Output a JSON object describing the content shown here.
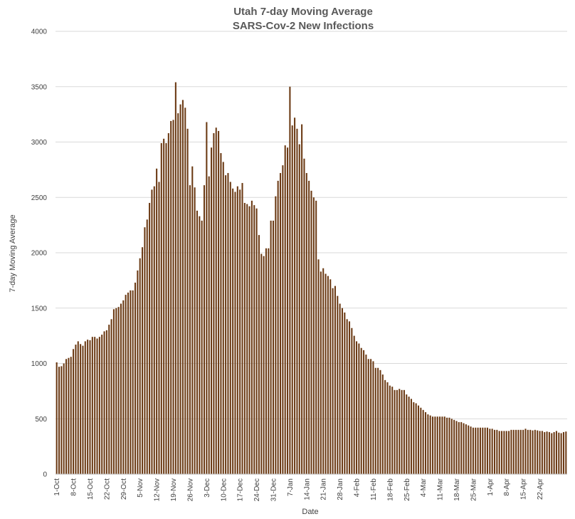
{
  "chart_data": {
    "type": "bar",
    "title": "Utah 7-day Moving Average",
    "subtitle": "SARS-Cov-2 New Infections",
    "xlabel": "Date",
    "ylabel": "7-day Moving Average",
    "ylim": [
      0,
      4000
    ],
    "y_ticks": [
      "0",
      "500",
      "1000",
      "1500",
      "2000",
      "2500",
      "3000",
      "3500",
      "4000"
    ],
    "x_tick_labels": [
      "1-Oct",
      "8-Oct",
      "15-Oct",
      "22-Oct",
      "29-Oct",
      "5-Nov",
      "12-Nov",
      "19-Nov",
      "26-Nov",
      "3-Dec",
      "10-Dec",
      "17-Dec",
      "24-Dec",
      "31-Dec",
      "7-Jan",
      "14-Jan",
      "21-Jan",
      "28-Jan",
      "4-Feb",
      "11-Feb",
      "18-Feb",
      "25-Feb",
      "4-Mar",
      "11-Mar",
      "18-Mar",
      "25-Mar",
      "1-Apr",
      "8-Apr",
      "15-Apr",
      "22-Apr"
    ],
    "grid": "horizontal",
    "bar_color": "#6b3a14",
    "series": [
      {
        "values": [
          1010,
          970,
          975,
          1000,
          1040,
          1050,
          1060,
          1130,
          1170,
          1200,
          1175,
          1160,
          1200,
          1215,
          1210,
          1240,
          1240,
          1225,
          1240,
          1260,
          1290,
          1300,
          1350,
          1400,
          1490,
          1500,
          1510,
          1540,
          1570,
          1620,
          1640,
          1660,
          1660,
          1730,
          1840,
          1950,
          2050,
          2230,
          2300,
          2450,
          2570,
          2600,
          2760,
          2640,
          2990,
          3030,
          2990,
          3080,
          3190,
          3200,
          3540,
          3260,
          3340,
          3380,
          3310,
          3120,
          2610,
          2780,
          2590,
          2380,
          2330,
          2290,
          2610,
          3180,
          2690,
          2950,
          3080,
          3130,
          3100,
          2900,
          2820,
          2700,
          2720,
          2640,
          2580,
          2550,
          2600,
          2570,
          2630,
          2450,
          2440,
          2420,
          2470,
          2430,
          2400,
          2160,
          1990,
          1970,
          2040,
          2040,
          2290,
          2290,
          2510,
          2650,
          2720,
          2790,
          2970,
          2950,
          3500,
          3150,
          3220,
          3120,
          2980,
          3160,
          2850,
          2720,
          2650,
          2560,
          2500,
          2470,
          1940,
          1830,
          1860,
          1810,
          1790,
          1760,
          1680,
          1700,
          1610,
          1540,
          1500,
          1460,
          1400,
          1380,
          1320,
          1250,
          1200,
          1180,
          1140,
          1120,
          1080,
          1040,
          1040,
          1020,
          960,
          960,
          940,
          900,
          850,
          830,
          800,
          790,
          760,
          760,
          770,
          760,
          760,
          720,
          700,
          680,
          650,
          640,
          620,
          600,
          580,
          560,
          540,
          530,
          520,
          520,
          520,
          520,
          520,
          520,
          510,
          510,
          500,
          490,
          480,
          470,
          470,
          460,
          450,
          440,
          430,
          420,
          420,
          420,
          420,
          420,
          420,
          420,
          410,
          410,
          400,
          400,
          390,
          390,
          390,
          390,
          390,
          400,
          400,
          400,
          400,
          400,
          400,
          410,
          400,
          400,
          395,
          400,
          395,
          390,
          390,
          380,
          385,
          380,
          370,
          380,
          390,
          375,
          370,
          380,
          385
        ]
      }
    ]
  }
}
